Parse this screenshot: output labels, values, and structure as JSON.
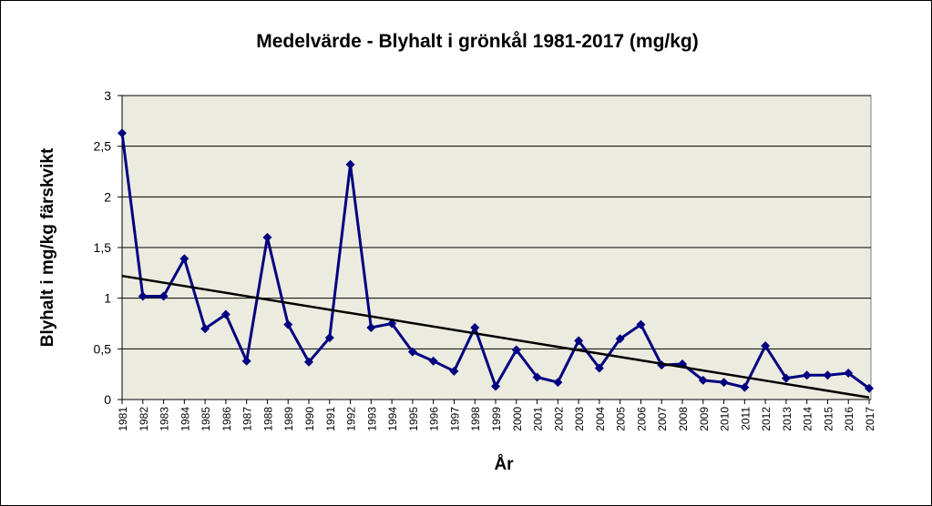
{
  "chart_data": {
    "type": "line",
    "title": "Medelvärde - Blyhalt i grönkål 1981-2017 (mg/kg)",
    "x_label": "År",
    "y_label": "Blyhalt i mg/kg färskvikt",
    "categories": [
      "1981",
      "1982",
      "1983",
      "1984",
      "1985",
      "1986",
      "1987",
      "1988",
      "1989",
      "1990",
      "1991",
      "1992",
      "1993",
      "1994",
      "1995",
      "1996",
      "1997",
      "1998",
      "1999",
      "2000",
      "2001",
      "2002",
      "2003",
      "2004",
      "2005",
      "2006",
      "2007",
      "2008",
      "2009",
      "2010",
      "2011",
      "2012",
      "2013",
      "2014",
      "2015",
      "2016",
      "2017"
    ],
    "series": [
      {
        "color": "#000080",
        "values": [
          2.63,
          1.02,
          1.02,
          1.39,
          0.7,
          0.84,
          0.38,
          1.6,
          0.74,
          0.37,
          0.61,
          2.32,
          0.71,
          0.75,
          0.47,
          0.38,
          0.28,
          0.71,
          0.13,
          0.49,
          0.22,
          0.17,
          0.58,
          0.31,
          0.6,
          0.74,
          0.34,
          0.35,
          0.19,
          0.17,
          0.12,
          0.53,
          0.21,
          0.24,
          0.24,
          0.26,
          0.11
        ]
      }
    ],
    "trendline": {
      "start": 1.22,
      "end": 0.02,
      "color": "#000000"
    },
    "ylim": [
      0,
      3
    ],
    "yticks": [
      0,
      {
        "value": 0.5,
        "label": "0,5"
      },
      1,
      {
        "value": 1.5,
        "label": "1,5"
      },
      2,
      {
        "value": 2.5,
        "label": "2,5"
      },
      3
    ],
    "grid": true,
    "plot_background": "#ECEBDF"
  }
}
